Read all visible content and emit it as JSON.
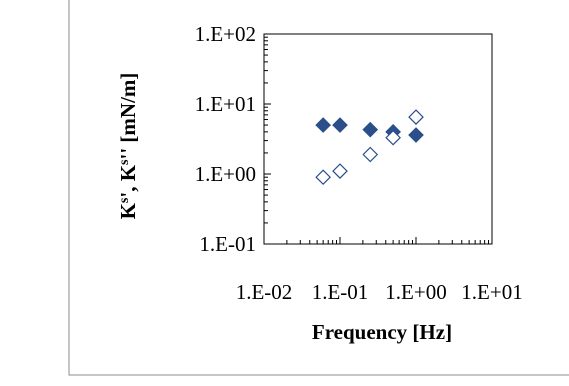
{
  "chart_data": {
    "type": "scatter",
    "title": "",
    "xlabel": "Frequency  [Hz]",
    "ylabel": "K^s', K^s'' [mN/m]",
    "ylabel_parts": {
      "k1": "K",
      "s1": "s",
      "p1": "', ",
      "k2": "K",
      "s2": "s",
      "p2": "'' [mN/m]"
    },
    "x_scale": "log",
    "y_scale": "log",
    "xlim": [
      0.01,
      10
    ],
    "ylim": [
      0.1,
      100
    ],
    "x_ticks": [
      "1.E-02",
      "1.E-01",
      "1.E+00",
      "1.E+01"
    ],
    "y_ticks": [
      "1.E-01",
      "1.E+00",
      "1.E+01",
      "1.E+02"
    ],
    "grid": false,
    "legend": "none",
    "series": [
      {
        "marker": "filled-diamond",
        "color": "#2b4f8a",
        "x": [
          0.06,
          0.1,
          0.25,
          0.5,
          1.0
        ],
        "y": [
          5.0,
          5.0,
          4.3,
          4.0,
          3.6
        ]
      },
      {
        "marker": "open-diamond",
        "color": "#2b4f8a",
        "x": [
          0.06,
          0.1,
          0.25,
          0.5,
          1.0
        ],
        "y": [
          0.9,
          1.1,
          1.9,
          3.3,
          6.5
        ]
      }
    ]
  }
}
